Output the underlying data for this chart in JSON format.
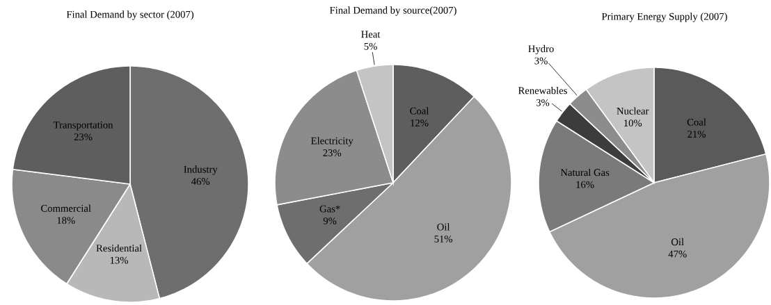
{
  "chart_data": [
    {
      "type": "pie",
      "title": "Final Demand by sector (2007)",
      "categories": [
        "Industry",
        "Residential",
        "Commercial",
        "Transportation"
      ],
      "values": [
        46,
        13,
        18,
        23
      ],
      "value_labels": [
        "46%",
        "13%",
        "18%",
        "23%"
      ],
      "colors": [
        "#6e6e6e",
        "#b8b8b8",
        "#8a8a8a",
        "#5e5e5e"
      ]
    },
    {
      "type": "pie",
      "title": "Final Demand by source(2007)",
      "categories": [
        "Coal",
        "Oil",
        "Gas*",
        "Electricity",
        "Heat"
      ],
      "values": [
        12,
        51,
        9,
        23,
        5
      ],
      "value_labels": [
        "12%",
        "51%",
        "9%",
        "23%",
        "5%"
      ],
      "colors": [
        "#5e5e5e",
        "#a0a0a0",
        "#6e6e6e",
        "#8c8c8c",
        "#c4c4c4"
      ]
    },
    {
      "type": "pie",
      "title": "Primary Energy Supply (2007)",
      "categories": [
        "Coal",
        "Oil",
        "Natural Gas",
        "Renewables",
        "Hydro",
        "Nuclear"
      ],
      "values": [
        21,
        47,
        16,
        3,
        3,
        10
      ],
      "value_labels": [
        "21%",
        "47%",
        "16%",
        "3%",
        "3%",
        "10%"
      ],
      "colors": [
        "#5a5a5a",
        "#a0a0a0",
        "#7a7a7a",
        "#3c3c3c",
        "#8c8c8c",
        "#c4c4c4"
      ]
    }
  ]
}
